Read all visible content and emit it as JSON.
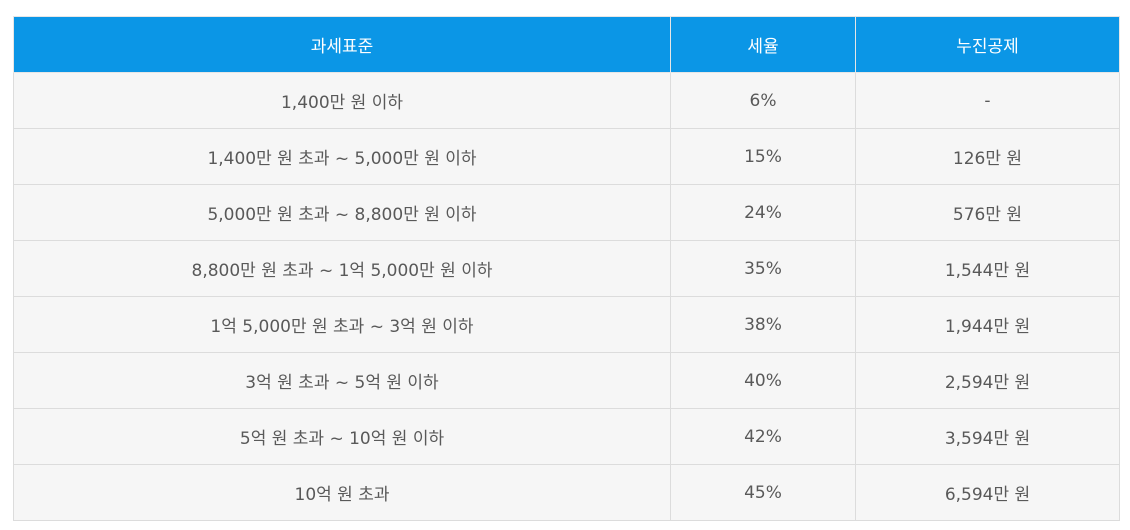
{
  "table": {
    "headers": [
      "과세표준",
      "세율",
      "누진공제"
    ],
    "rows": [
      [
        "1,400만 원 이하",
        "6%",
        "-"
      ],
      [
        "1,400만 원 초과 ~ 5,000만 원 이하",
        "15%",
        "126만 원"
      ],
      [
        "5,000만 원 초과 ~ 8,800만 원 이하",
        "24%",
        "576만 원"
      ],
      [
        "8,800만 원 초과 ~ 1억 5,000만 원 이하",
        "35%",
        "1,544만 원"
      ],
      [
        "1억 5,000만 원 초과 ~ 3억 원 이하",
        "38%",
        "1,944만 원"
      ],
      [
        "3억 원 초과 ~ 5억 원 이하",
        "40%",
        "2,594만 원"
      ],
      [
        "5억 원 초과 ~ 10억 원 이하",
        "42%",
        "3,594만 원"
      ],
      [
        "10억 원 초과",
        "45%",
        "6,594만 원"
      ]
    ]
  },
  "colors": {
    "header_bg": "#0b96e6",
    "header_text": "#ffffff",
    "cell_bg": "#f6f6f6",
    "cell_text": "#595959",
    "border": "#dcdcdc"
  }
}
